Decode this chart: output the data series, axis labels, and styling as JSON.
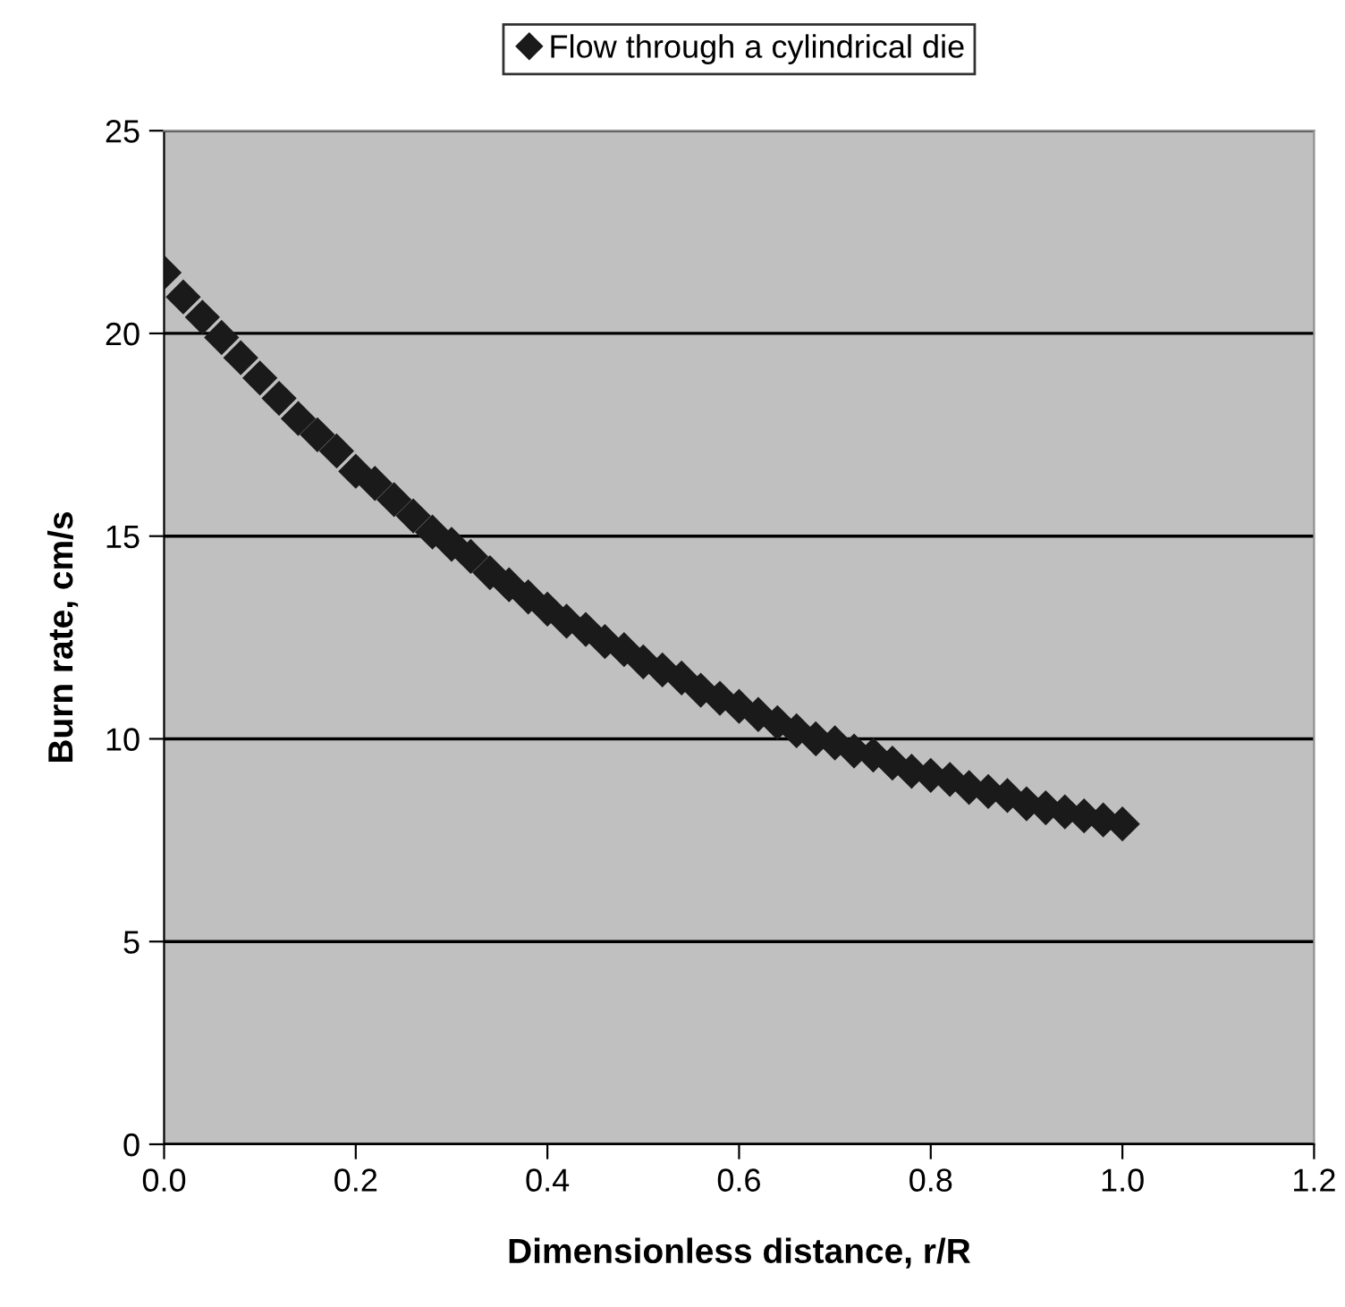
{
  "chart_data": {
    "type": "scatter",
    "xlabel": "Dimensionless distance, r/R",
    "ylabel": "Burn rate, cm/s",
    "x": [
      0,
      0.02,
      0.04,
      0.06,
      0.08,
      0.1,
      0.12,
      0.14,
      0.16,
      0.18,
      0.2,
      0.22,
      0.24,
      0.26,
      0.28,
      0.3,
      0.32,
      0.34,
      0.36,
      0.38,
      0.4,
      0.42,
      0.44,
      0.46,
      0.48,
      0.5,
      0.52,
      0.54,
      0.56,
      0.58,
      0.6,
      0.62,
      0.64,
      0.66,
      0.68,
      0.7,
      0.72,
      0.74,
      0.76,
      0.78,
      0.8,
      0.82,
      0.84,
      0.86,
      0.88,
      0.9,
      0.92,
      0.94,
      0.96,
      0.98,
      1.0
    ],
    "series": [
      {
        "name": "Flow through a cylindrical die",
        "color": "#1a1a1a",
        "values": [
          21.5,
          20.9,
          20.4,
          19.9,
          19.4,
          18.9,
          18.4,
          17.9,
          17.5,
          17.1,
          16.6,
          16.3,
          15.9,
          15.5,
          15.1,
          14.8,
          14.5,
          14.1,
          13.8,
          13.5,
          13.2,
          12.9,
          12.7,
          12.4,
          12.2,
          11.9,
          11.7,
          11.5,
          11.2,
          11.0,
          10.8,
          10.6,
          10.4,
          10.2,
          10.0,
          9.9,
          9.7,
          9.6,
          9.4,
          9.2,
          9.1,
          9.0,
          8.8,
          8.7,
          8.6,
          8.4,
          8.3,
          8.2,
          8.1,
          8.0,
          7.9
        ]
      }
    ],
    "xlim": [
      0,
      1.2
    ],
    "ylim": [
      0,
      25
    ],
    "xticks": [
      {
        "value": 0,
        "label": "0.0"
      },
      {
        "value": 0.2,
        "label": "0.2"
      },
      {
        "value": 0.4,
        "label": "0.4"
      },
      {
        "value": 0.6,
        "label": "0.6"
      },
      {
        "value": 0.8,
        "label": "0.8"
      },
      {
        "value": 1.0,
        "label": "1.0"
      },
      {
        "value": 1.2,
        "label": "1.2"
      }
    ],
    "yticks": [
      0,
      5,
      10,
      15,
      20,
      25
    ],
    "grid": "y",
    "legend": "top",
    "marker": "diamond"
  }
}
